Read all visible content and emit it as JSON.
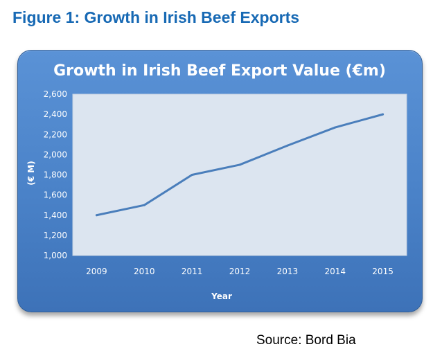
{
  "figure_heading": "Figure 1: Growth in Irish Beef Exports",
  "source": "Source: Bord Bia",
  "colors": {
    "heading": "#1769b4",
    "panel": "#4a82c8",
    "plot_area": "#dce5f0",
    "line": "#4a7ebb",
    "text": "#ffffff"
  },
  "chart_data": {
    "type": "line",
    "title": "Growth in Irish Beef Export Value (€m)",
    "xlabel": "Year",
    "ylabel": "(€ M)",
    "categories": [
      "2009",
      "2010",
      "2011",
      "2012",
      "2013",
      "2014",
      "2015"
    ],
    "series": [
      {
        "name": "Irish Beef Export Value (€m)",
        "values": [
          1400,
          1500,
          1800,
          1900,
          2090,
          2270,
          2400
        ]
      }
    ],
    "ylim": [
      1000,
      2600
    ],
    "yticks": [
      "1,000",
      "1,200",
      "1,400",
      "1,600",
      "1,800",
      "2,000",
      "2,200",
      "2,400",
      "2,600"
    ],
    "grid": false,
    "legend": "none"
  }
}
